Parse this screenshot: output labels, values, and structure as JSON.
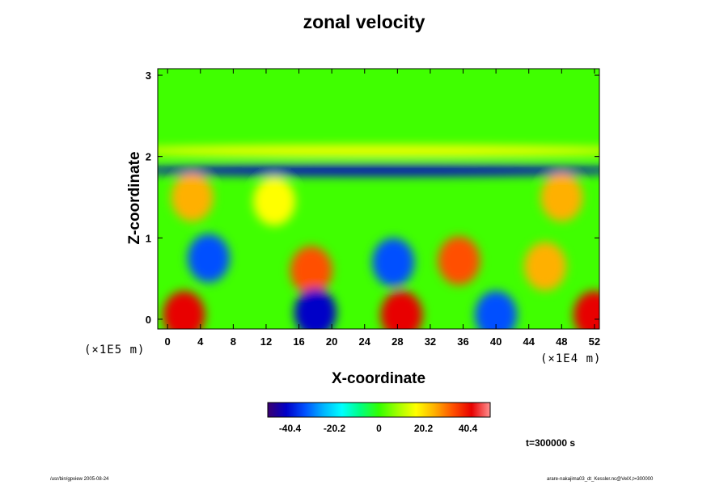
{
  "chart_data": {
    "type": "heatmap",
    "title": "zonal velocity",
    "xlabel": "X-coordinate",
    "ylabel": "Z-coordinate",
    "x_ticks": [
      "0",
      "4",
      "8",
      "12",
      "16",
      "20",
      "24",
      "28",
      "32",
      "36",
      "40",
      "44",
      "48",
      "52"
    ],
    "y_ticks": [
      "0",
      "1",
      "2",
      "3"
    ],
    "xlim": [
      -1.2,
      52.6
    ],
    "ylim": [
      -0.12,
      3.08
    ],
    "x_unit": "(×1E4 m)",
    "y_unit": "(×1E5 m)",
    "colorbar": {
      "tick_labels": [
        "-40.4",
        "-20.2",
        "0",
        "20.2",
        "40.4"
      ],
      "tick_values": [
        -40.4,
        -20.2,
        0,
        20.2,
        40.4
      ],
      "range": [
        -50.5,
        50.5
      ],
      "colors": [
        "#3a0070",
        "#0000c8",
        "#0050ff",
        "#00b4ff",
        "#00ffff",
        "#00ff80",
        "#33ff00",
        "#a0ff00",
        "#ffff00",
        "#ffb000",
        "#ff5000",
        "#e80000",
        "#ff9090"
      ]
    },
    "features": [
      {
        "x": 25.6,
        "z": 1.83,
        "value": -38
      },
      {
        "x": 25.6,
        "z": 2.07,
        "value": 18
      },
      {
        "x": 3.0,
        "z": 1.5,
        "value": 28
      },
      {
        "x": 13.0,
        "z": 1.45,
        "value": 18
      },
      {
        "x": 48.0,
        "z": 1.5,
        "value": 28
      },
      {
        "x": 5.0,
        "z": 0.75,
        "value": -30
      },
      {
        "x": 17.5,
        "z": 0.6,
        "value": 36
      },
      {
        "x": 27.5,
        "z": 0.7,
        "value": -30
      },
      {
        "x": 35.5,
        "z": 0.72,
        "value": 32
      },
      {
        "x": 46.0,
        "z": 0.65,
        "value": 22
      },
      {
        "x": 2.0,
        "z": 0.05,
        "value": 45
      },
      {
        "x": 18.0,
        "z": 0.08,
        "value": -40
      },
      {
        "x": 28.5,
        "z": 0.05,
        "value": 38
      },
      {
        "x": 40.0,
        "z": 0.05,
        "value": -30
      },
      {
        "x": 52.0,
        "z": 0.05,
        "value": 40
      }
    ]
  },
  "footer": {
    "left": "/usr/bin/gpview 2005-08-24",
    "right": "arare-nakajima03_dt_Kessler.nc@VelX,t=300000",
    "time_label": "t=300000 s"
  }
}
